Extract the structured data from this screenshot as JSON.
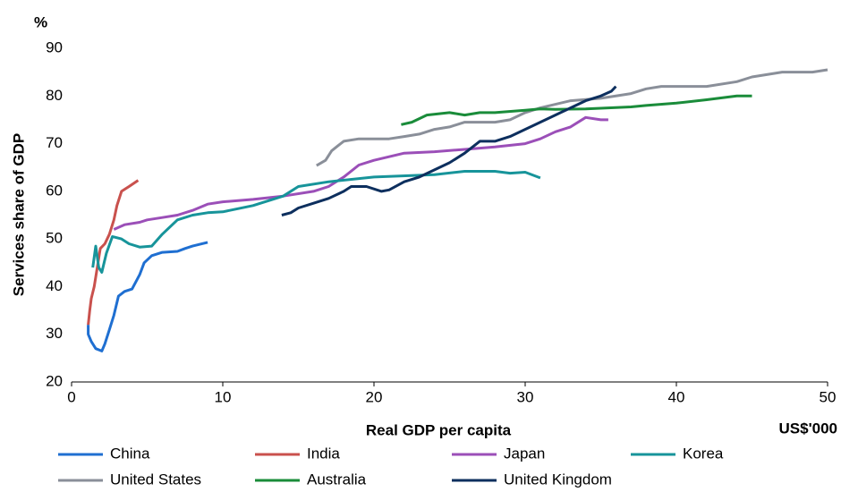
{
  "chart_data": {
    "type": "line",
    "y_unit": "%",
    "ylabel": "Services share of GDP",
    "xlabel": "Real GDP  per capita",
    "x_unit": "US$'000",
    "xlim": [
      0,
      50
    ],
    "xticks": [
      0,
      10,
      20,
      30,
      40,
      50
    ],
    "ylim": [
      20,
      90
    ],
    "yticks": [
      20,
      30,
      40,
      50,
      60,
      70,
      80,
      90
    ],
    "grid": false,
    "series": [
      {
        "name": "China",
        "color": "#1f6fd1",
        "x": [
          1.1,
          1.1,
          1.3,
          1.6,
          2.0,
          2.2,
          2.5,
          2.8,
          3.1,
          3.5,
          4.0,
          4.5,
          4.8,
          5.3,
          6.0,
          7.0,
          7.5,
          8.0,
          9.0
        ],
        "values": [
          32,
          30,
          28.5,
          27,
          26.5,
          28,
          31,
          34,
          38,
          39,
          39.5,
          42.5,
          45,
          46.5,
          47.2,
          47.4,
          48,
          48.5,
          49.3
        ]
      },
      {
        "name": "India",
        "color": "#c9514d",
        "x": [
          1.1,
          1.2,
          1.3,
          1.5,
          1.7,
          1.9,
          2.2,
          2.5,
          2.8,
          3.0,
          3.3,
          3.8,
          4.4
        ],
        "values": [
          32,
          35,
          37.5,
          40,
          44,
          48,
          49,
          51,
          54,
          57,
          60,
          61,
          62.3
        ]
      },
      {
        "name": "Japan",
        "color": "#9b4fb8",
        "x": [
          2.8,
          3.5,
          4.5,
          5,
          6,
          7,
          8,
          9,
          10,
          12,
          14,
          16,
          17,
          18,
          19,
          20,
          22,
          24,
          26,
          28,
          30,
          31,
          32,
          33,
          34,
          35,
          35.5
        ],
        "values": [
          52,
          53,
          53.5,
          54,
          54.5,
          55,
          56,
          57.3,
          57.8,
          58.3,
          59,
          60,
          61,
          63,
          65.5,
          66.5,
          68,
          68.3,
          68.8,
          69.3,
          70,
          71,
          72.5,
          73.5,
          75.5,
          75,
          75
        ]
      },
      {
        "name": "Korea",
        "color": "#17949a",
        "x": [
          1.4,
          1.6,
          1.8,
          2.0,
          2.3,
          2.7,
          3.3,
          3.8,
          4.5,
          5.3,
          6.0,
          7,
          8,
          9,
          10,
          12,
          14,
          15,
          17,
          20,
          24,
          26,
          28,
          29,
          30,
          31
        ],
        "values": [
          44,
          48.5,
          44,
          43,
          47,
          50.5,
          50,
          49,
          48.3,
          48.5,
          51,
          54,
          55,
          55.5,
          55.7,
          57,
          59,
          61,
          62,
          63,
          63.5,
          64.2,
          64.2,
          63.8,
          64,
          62.8
        ]
      },
      {
        "name": "United States",
        "color": "#8a8f99",
        "x": [
          16.2,
          16.8,
          17.2,
          17.6,
          18,
          19,
          21,
          22,
          23,
          24,
          25,
          26,
          28,
          29,
          30,
          31,
          33,
          35,
          37,
          38,
          39,
          42,
          44,
          45,
          47,
          49,
          50
        ],
        "values": [
          65.4,
          66.5,
          68.5,
          69.5,
          70.5,
          71,
          71,
          71.5,
          72,
          73,
          73.5,
          74.5,
          74.5,
          75,
          76.5,
          77.5,
          79,
          79.5,
          80.5,
          81.5,
          82,
          82,
          83,
          84,
          85,
          85,
          85.5
        ]
      },
      {
        "name": "Australia",
        "color": "#1a8c3a",
        "x": [
          21.8,
          22.5,
          23.5,
          25,
          26,
          27,
          28,
          30,
          31,
          32,
          34,
          37,
          38,
          40,
          42,
          44,
          45
        ],
        "values": [
          74,
          74.5,
          76,
          76.5,
          76,
          76.5,
          76.5,
          77,
          77.3,
          77.2,
          77.3,
          77.7,
          78,
          78.5,
          79.2,
          80,
          80
        ]
      },
      {
        "name": "United Kingdom",
        "color": "#0d2f5e",
        "x": [
          13.9,
          14.5,
          15,
          16,
          17,
          18,
          18.5,
          19.5,
          20.5,
          21,
          22,
          23,
          24,
          25,
          26,
          27,
          28,
          29,
          30,
          31,
          32,
          33,
          34,
          35,
          35.7,
          36
        ],
        "values": [
          55,
          55.5,
          56.5,
          57.5,
          58.5,
          60,
          61,
          61,
          60,
          60.3,
          62,
          63,
          64.5,
          66,
          68,
          70.5,
          70.5,
          71.5,
          73,
          74.5,
          76,
          77.5,
          79,
          80,
          81,
          82
        ]
      }
    ]
  }
}
